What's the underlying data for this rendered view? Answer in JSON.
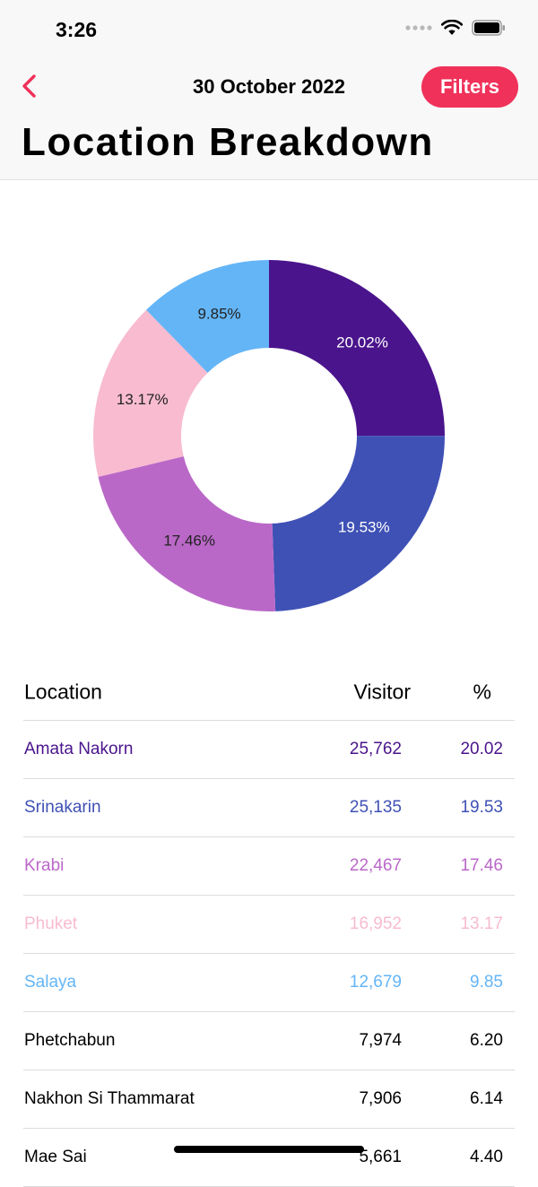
{
  "status_bar": {
    "time": "3:26"
  },
  "nav": {
    "date": "30 October 2022",
    "filters_label": "Filters",
    "title": "Location Breakdown"
  },
  "chart_data": {
    "type": "pie",
    "donut": true,
    "slices": [
      {
        "label": "20.02%",
        "value": 20.02,
        "color": "#4a148c",
        "label_color": "#ffffff"
      },
      {
        "label": "19.53%",
        "value": 19.53,
        "color": "#3f51b5",
        "label_color": "#ffffff"
      },
      {
        "label": "17.46%",
        "value": 17.46,
        "color": "#ba68c8",
        "label_color": "#222222"
      },
      {
        "label": "13.17%",
        "value": 13.17,
        "color": "#f8bbd0",
        "label_color": "#222222"
      },
      {
        "label": "9.85%",
        "value": 9.85,
        "color": "#64b5f6",
        "label_color": "#222222"
      }
    ]
  },
  "table": {
    "headers": {
      "location": "Location",
      "visitor": "Visitor",
      "percent": "%"
    },
    "rows": [
      {
        "location": "Amata Nakorn",
        "visitor": "25,762",
        "percent": "20.02",
        "color": "#4a148c"
      },
      {
        "location": "Srinakarin",
        "visitor": "25,135",
        "percent": "19.53",
        "color": "#3f51b5"
      },
      {
        "location": "Krabi",
        "visitor": "22,467",
        "percent": "17.46",
        "color": "#ba68c8"
      },
      {
        "location": "Phuket",
        "visitor": "16,952",
        "percent": "13.17",
        "color": "#f8bbd0"
      },
      {
        "location": "Salaya",
        "visitor": "12,679",
        "percent": "9.85",
        "color": "#64b5f6"
      },
      {
        "location": "Phetchabun",
        "visitor": "7,974",
        "percent": "6.20",
        "color": "#000000"
      },
      {
        "location": "Nakhon Si Thammarat",
        "visitor": "7,906",
        "percent": "6.14",
        "color": "#000000"
      },
      {
        "location": "Mae Sai",
        "visitor": "5,661",
        "percent": "4.40",
        "color": "#000000"
      }
    ]
  }
}
